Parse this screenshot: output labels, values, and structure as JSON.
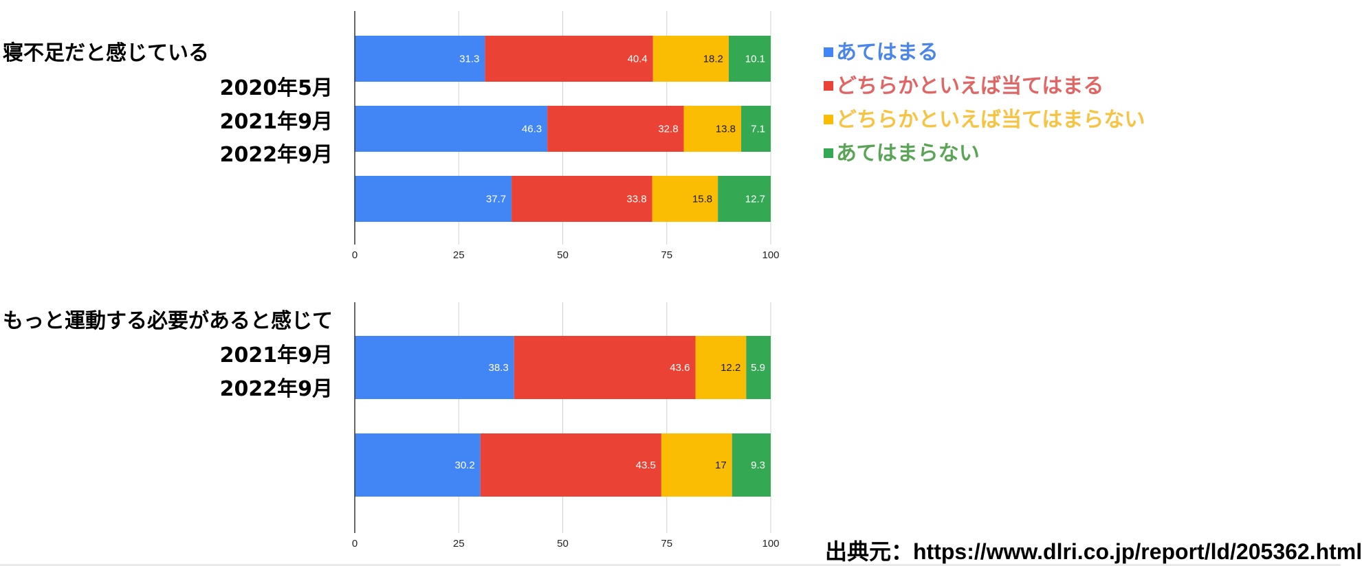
{
  "colors": {
    "series": [
      "#4285f4",
      "#ea4335",
      "#fbbc04",
      "#34a853"
    ],
    "legend_text": [
      "#4a86e8",
      "#e06666",
      "#f6c343",
      "#5aa455"
    ],
    "grid": "#d0d0d0",
    "axis": "#333333"
  },
  "legend": {
    "items": [
      {
        "marker": "■",
        "label": "あてはまる"
      },
      {
        "marker": "■",
        "label": "どちらかといえば当てはまる"
      },
      {
        "marker": "■",
        "label": "どちらかといえば当てはまらない"
      },
      {
        "marker": "■",
        "label": "あてはまらない"
      }
    ]
  },
  "source_text": "出典元：https://www.dlri.co.jp/report/ld/205362.html",
  "chart_data": [
    {
      "type": "bar",
      "orientation": "horizontal",
      "stacked": true,
      "title": "寝不足だと感じている",
      "year_labels": [
        "2020年5月",
        "2021年9月",
        "2022年9月"
      ],
      "xlim": [
        0,
        100
      ],
      "xticks": [
        0,
        25,
        50,
        75,
        100
      ],
      "series": [
        {
          "name": "あてはまる",
          "values": [
            31.3,
            46.3,
            37.7
          ]
        },
        {
          "name": "どちらかといえば当てはまる",
          "values": [
            40.4,
            32.8,
            33.8
          ]
        },
        {
          "name": "どちらかといえば当てはまらない",
          "values": [
            18.2,
            13.8,
            15.8
          ]
        },
        {
          "name": "あてはまらない",
          "values": [
            10.1,
            7.1,
            12.7
          ]
        }
      ]
    },
    {
      "type": "bar",
      "orientation": "horizontal",
      "stacked": true,
      "title": "もっと運動する必要があると感じて",
      "year_labels": [
        "2021年9月",
        "2022年9月"
      ],
      "xlim": [
        0,
        100
      ],
      "xticks": [
        0,
        25,
        50,
        75,
        100
      ],
      "series": [
        {
          "name": "あてはまる",
          "values": [
            38.3,
            30.2
          ]
        },
        {
          "name": "どちらかといえば当てはまる",
          "values": [
            43.6,
            43.5
          ]
        },
        {
          "name": "どちらかといえば当てはまらない",
          "values": [
            12.2,
            17
          ]
        },
        {
          "name": "あてはまらない",
          "values": [
            5.9,
            9.3
          ]
        }
      ]
    }
  ]
}
